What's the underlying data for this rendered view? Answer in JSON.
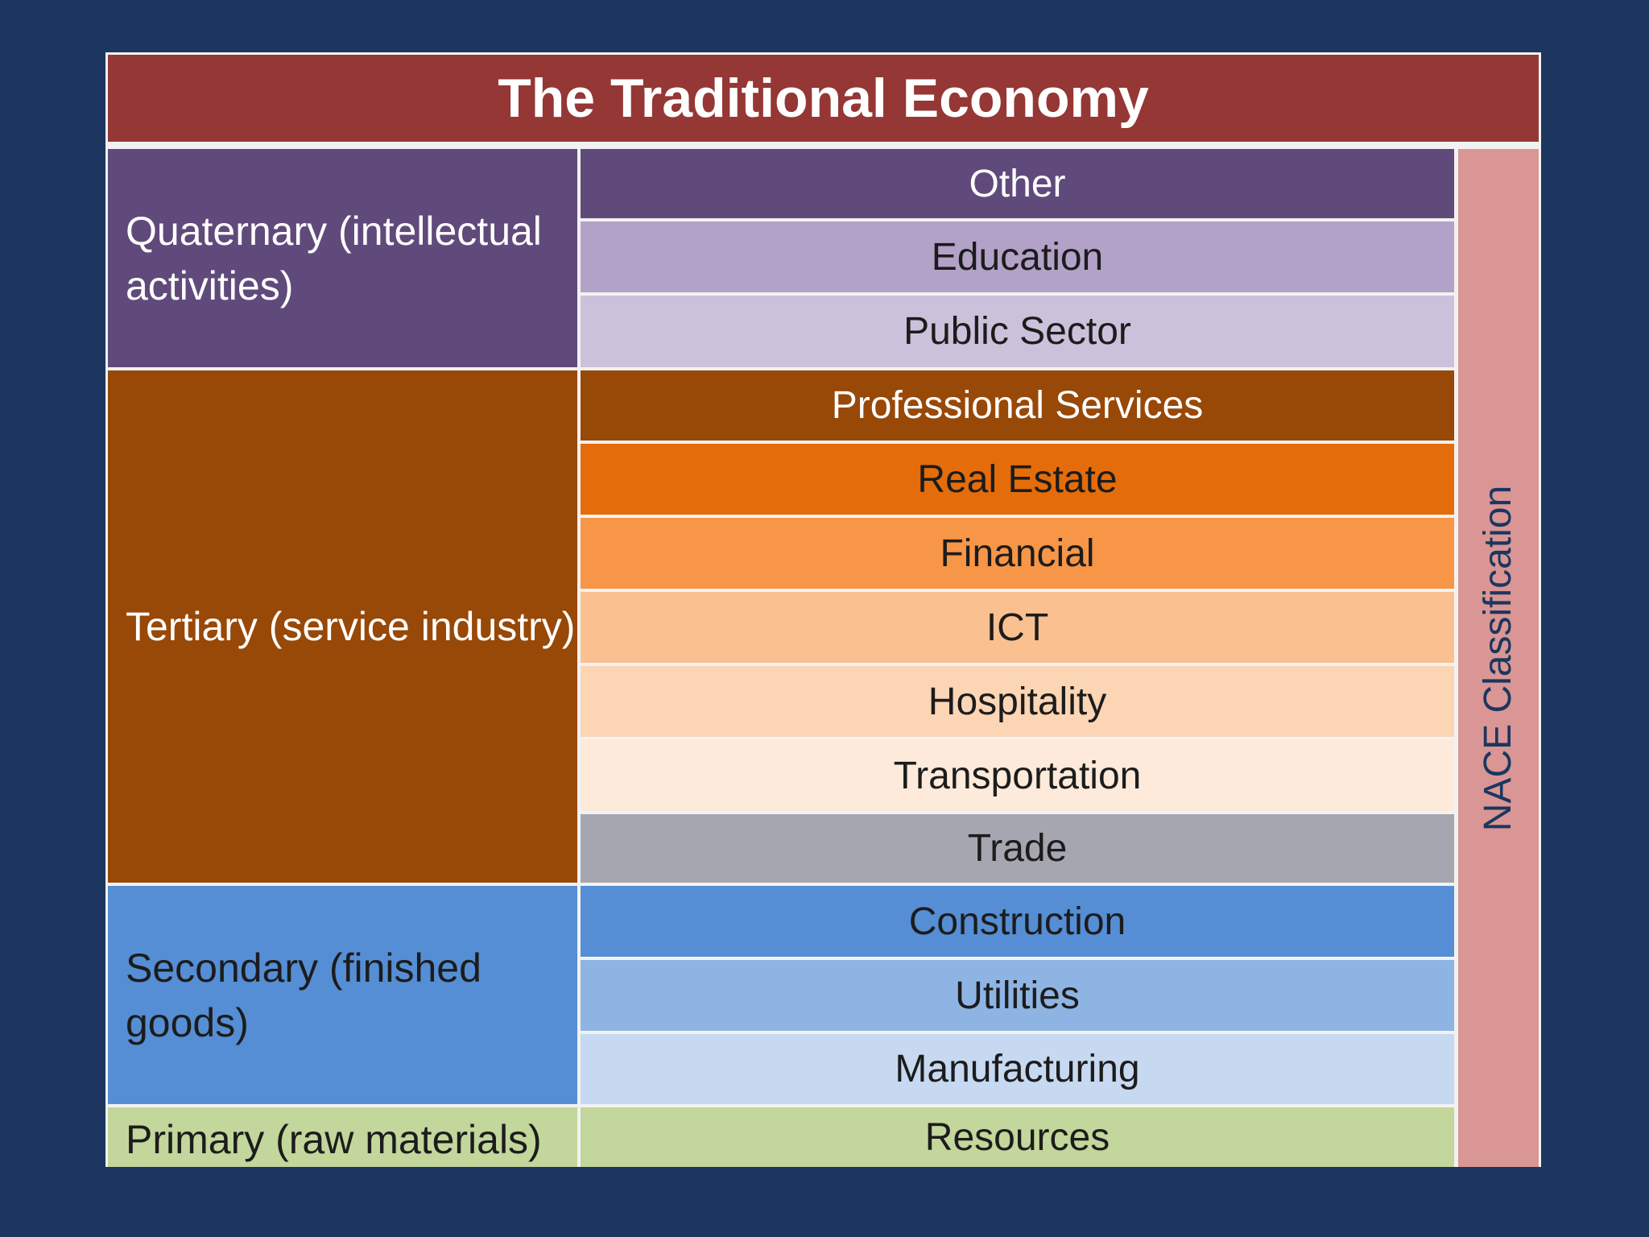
{
  "title": "The Traditional Economy",
  "side_label": "NACE Classification",
  "groups": [
    {
      "label": "Quaternary (intellectual activities)",
      "color": "#604a7b",
      "text_color": "#ffffff"
    },
    {
      "label": "Tertiary (service industry)",
      "color": "#984807",
      "text_color": "#ffffff"
    },
    {
      "label": "Secondary (finished goods)",
      "color": "#558ed5",
      "text_color": "#1c1c1c"
    },
    {
      "label": "Primary (raw materials)",
      "color": "#c3d69b",
      "text_color": "#1c1c1c"
    }
  ],
  "sectors": [
    {
      "label": "Other",
      "color": "#604a7b",
      "text_color": "#ffffff"
    },
    {
      "label": "Education",
      "color": "#b3a2c7",
      "text_color": "#1c1c1c"
    },
    {
      "label": "Public Sector",
      "color": "#ccc1da",
      "text_color": "#1c1c1c"
    },
    {
      "label": "Professional Services",
      "color": "#984807",
      "text_color": "#ffffff"
    },
    {
      "label": "Real Estate",
      "color": "#e46c0a",
      "text_color": "#1c1c1c"
    },
    {
      "label": "Financial",
      "color": "#f79646",
      "text_color": "#1c1c1c"
    },
    {
      "label": "ICT",
      "color": "#fac090",
      "text_color": "#1c1c1c"
    },
    {
      "label": "Hospitality",
      "color": "#fcd5b5",
      "text_color": "#1c1c1c"
    },
    {
      "label": "Transportation",
      "color": "#fdeada",
      "text_color": "#1c1c1c"
    },
    {
      "label": "Trade",
      "color": "#a6a6b0",
      "text_color": "#1c1c1c"
    },
    {
      "label": "Construction",
      "color": "#558ed5",
      "text_color": "#1c1c1c"
    },
    {
      "label": "Utilities",
      "color": "#8eb4e3",
      "text_color": "#1c1c1c"
    },
    {
      "label": "Manufacturing",
      "color": "#c6d9f1",
      "text_color": "#1c1c1c"
    },
    {
      "label": "Resources",
      "color": "#c3d69b",
      "text_color": "#1c1c1c"
    }
  ]
}
